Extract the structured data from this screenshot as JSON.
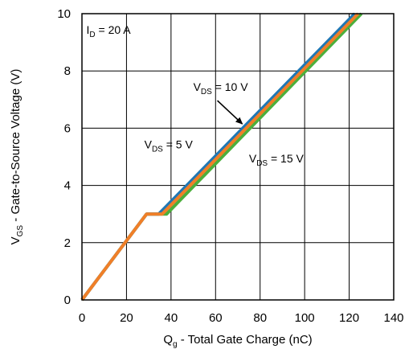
{
  "chart_data": {
    "type": "line",
    "xlabel": {
      "main": "Q",
      "sub": "g",
      "rest": " - Total Gate Charge (nC)"
    },
    "ylabel": {
      "main": "V",
      "sub": "GS",
      "rest": " - Gate-to-Source Voltage (V)"
    },
    "xlim": [
      0,
      140
    ],
    "ylim": [
      0,
      10
    ],
    "xticks": [
      0,
      20,
      40,
      60,
      80,
      100,
      120,
      140
    ],
    "yticks": [
      0,
      2,
      4,
      6,
      8,
      10
    ],
    "grid": true,
    "series": [
      {
        "name": "V_DS = 15 V",
        "color": "#4caf3c",
        "points": [
          [
            0,
            0
          ],
          [
            29,
            3.0
          ],
          [
            38,
            3.0
          ],
          [
            125.5,
            10
          ]
        ]
      },
      {
        "name": "V_DS = 5 V",
        "color": "#1f77b4",
        "points": [
          [
            0,
            0
          ],
          [
            29,
            3.0
          ],
          [
            34.5,
            3.0
          ],
          [
            122.5,
            10
          ]
        ]
      },
      {
        "name": "V_DS = 10 V",
        "color": "#f07f28",
        "points": [
          [
            0,
            0
          ],
          [
            29,
            3.0
          ],
          [
            36,
            3.0
          ],
          [
            124,
            10
          ]
        ]
      }
    ],
    "annotations": [
      {
        "id": "id",
        "main": "I",
        "sub": "D",
        "rest": " = 20 A",
        "x": 2,
        "y": 9.3
      },
      {
        "id": "vds10",
        "main": "V",
        "sub": "DS",
        "rest": " = 10 V",
        "x": 50,
        "y": 7.3,
        "arrow_to": [
          72,
          6.15
        ]
      },
      {
        "id": "vds5",
        "main": "V",
        "sub": "DS",
        "rest": " = 5 V",
        "x": 28,
        "y": 5.3
      },
      {
        "id": "vds15",
        "main": "V",
        "sub": "DS",
        "rest": " = 15 V",
        "x": 75,
        "y": 4.8
      }
    ]
  }
}
